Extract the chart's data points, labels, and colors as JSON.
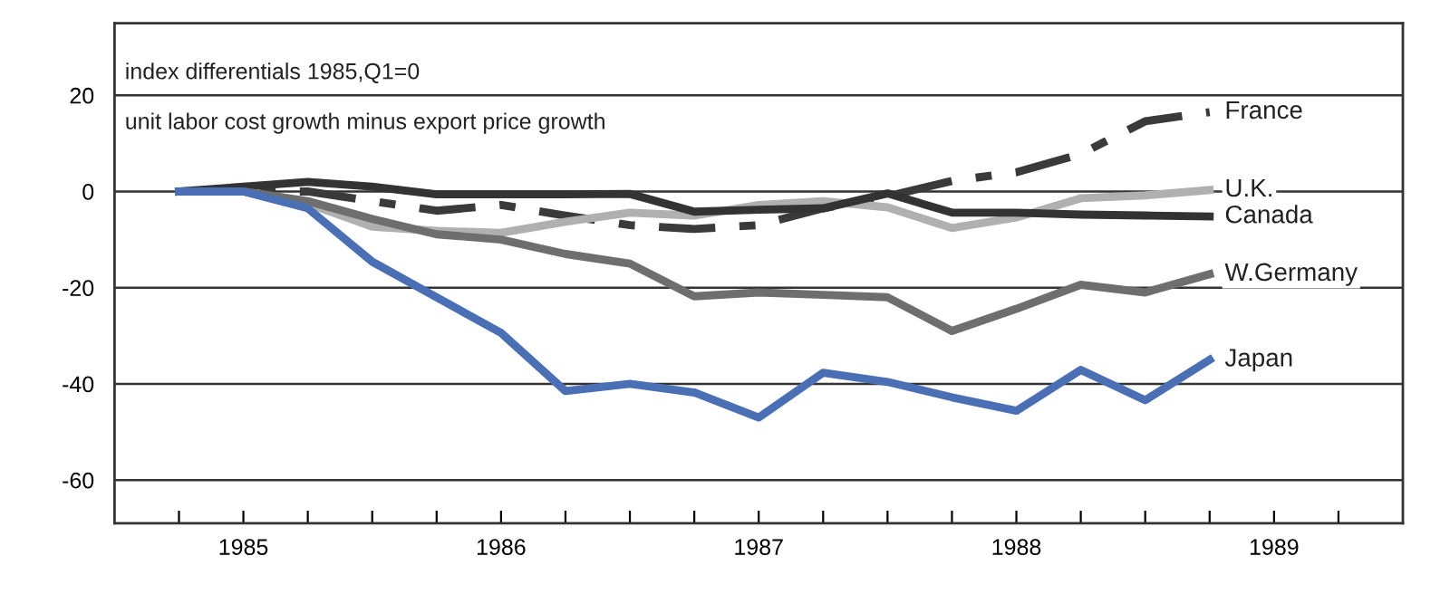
{
  "chart_data": {
    "type": "line",
    "ylabel": "index differentials 1985,Q1=0",
    "subtitle": "unit labor cost growth minus export price growth",
    "x": [
      1985.0,
      1985.25,
      1985.5,
      1985.75,
      1986.0,
      1986.25,
      1986.5,
      1986.75,
      1987.0,
      1987.25,
      1987.5,
      1987.75,
      1988.0,
      1988.25,
      1988.5,
      1988.75,
      1989.0
    ],
    "series": [
      {
        "name": "France",
        "color": "#3a3a3a",
        "line_style": "dashed",
        "values": [
          0,
          0,
          0,
          -2,
          -4,
          -2.8,
          -5,
          -7,
          -7.8,
          -7,
          -3.5,
          -1,
          2.2,
          4,
          7.8,
          14.6,
          16.5
        ]
      },
      {
        "name": "U.K.",
        "color": "#b0b0b0",
        "line_style": "solid",
        "values": [
          0,
          0,
          -2.5,
          -7.3,
          -8.2,
          -8.6,
          -6.3,
          -4.4,
          -5,
          -2.8,
          -2,
          -3.3,
          -7.6,
          -5.4,
          -1.4,
          -0.8,
          0.3
        ]
      },
      {
        "name": "Canada",
        "color": "#333333",
        "line_style": "solid",
        "values": [
          0,
          1,
          2,
          1,
          -0.6,
          -0.6,
          -0.6,
          -0.5,
          -4.2,
          -3.8,
          -3.5,
          -0.4,
          -4.4,
          -4.4,
          -4.8,
          -5,
          -5.2
        ]
      },
      {
        "name": "W.Germany",
        "color": "#6e6e6e",
        "line_style": "solid",
        "values": [
          0,
          0,
          -2,
          -5.7,
          -8.9,
          -10,
          -13,
          -15,
          -21.8,
          -21,
          -21.5,
          -22,
          -29,
          -24.4,
          -19.4,
          -21,
          -17.2
        ]
      },
      {
        "name": "Japan",
        "color": "#4a6fb5",
        "line_style": "solid",
        "values": [
          0,
          0,
          -3.5,
          -14.6,
          -22,
          -29.4,
          -41.5,
          -40,
          -41.8,
          -47,
          -37.7,
          -39.6,
          -42.8,
          -45.6,
          -37.1,
          -43.4,
          -35
        ]
      }
    ],
    "xlim": [
      1984.75,
      1989.75
    ],
    "xticks": [
      {
        "value": 1985.0,
        "label": null
      },
      {
        "value": 1985.25,
        "label": "1985"
      },
      {
        "value": 1985.5,
        "label": null
      },
      {
        "value": 1985.75,
        "label": null
      },
      {
        "value": 1986.0,
        "label": null
      },
      {
        "value": 1986.25,
        "label": "1986"
      },
      {
        "value": 1986.5,
        "label": null
      },
      {
        "value": 1986.75,
        "label": null
      },
      {
        "value": 1987.0,
        "label": null
      },
      {
        "value": 1987.25,
        "label": "1987"
      },
      {
        "value": 1987.5,
        "label": null
      },
      {
        "value": 1987.75,
        "label": null
      },
      {
        "value": 1988.0,
        "label": null
      },
      {
        "value": 1988.25,
        "label": "1988"
      },
      {
        "value": 1988.5,
        "label": null
      },
      {
        "value": 1988.75,
        "label": null
      },
      {
        "value": 1989.0,
        "label": null
      },
      {
        "value": 1989.25,
        "label": "1989"
      },
      {
        "value": 1989.5,
        "label": null
      }
    ],
    "ylim": [
      -69,
      35
    ],
    "yticks": [
      20,
      0,
      -20,
      -40,
      -60
    ],
    "grid": "y",
    "legend": false,
    "marker": "none"
  }
}
